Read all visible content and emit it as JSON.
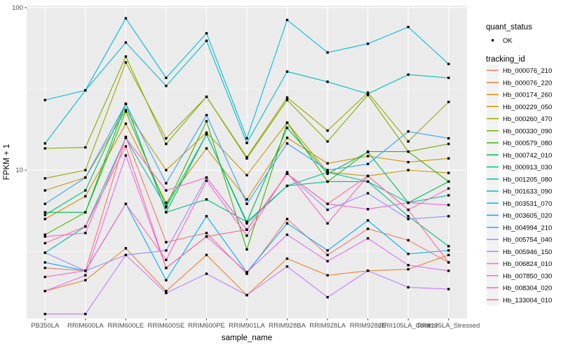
{
  "style": {
    "panel_bg": "#EBEBEB",
    "grid_color": "#FFFFFF",
    "tick_text_color": "#4D4D4D",
    "axis_title_color": "#000000",
    "point_color": "#000000",
    "legend_key_bg": "#F2F2F2",
    "quant_key_bg": "#FFFFFF"
  },
  "legend": {
    "quant_title": "quant_status",
    "quant_items": [
      {
        "label": "OK",
        "marker": "black-point"
      }
    ],
    "tracking_title": "tracking_id"
  },
  "chart_data": {
    "type": "line",
    "title": "",
    "xlabel": "sample_name",
    "ylabel": "FPKM + 1",
    "y_scale": "log10",
    "ylim": [
      1.22,
      103
    ],
    "y_major_ticks": [
      {
        "label": "100",
        "value": 100
      },
      {
        "label": "10",
        "value": 10
      }
    ],
    "y_minor_values": [
      31.623,
      3.1623
    ],
    "grid": true,
    "legend_position": "right",
    "point_marker": "small black square (quant_status = OK) on every observation",
    "categories": [
      "PB350LA",
      "RRIM600LA",
      "RRIM600LE",
      "RRIM600SE",
      "RRIM600PE",
      "RRIM901LA",
      "RRIM928BA",
      "RRIM928LA",
      "RRIM928LE",
      "RRII105LA_Control",
      "RRII105LA_Stressed"
    ],
    "series": [
      {
        "name": "Hb_000076_210",
        "color": "#F8766D",
        "values": [
          2.5,
          2.4,
          16.0,
          3.6,
          4.1,
          2.3,
          5.0,
          3.0,
          4.35,
          3.7,
          2.7
        ]
      },
      {
        "name": "Hb_000076_220",
        "color": "#EA8331",
        "values": [
          1.8,
          2.1,
          3.3,
          1.8,
          3.0,
          1.7,
          2.85,
          2.25,
          2.4,
          2.45,
          3.0
        ]
      },
      {
        "name": "Hb_000174_260",
        "color": "#D89000",
        "values": [
          5.0,
          6.9,
          19.3,
          6.3,
          13.6,
          6.6,
          15.8,
          11.0,
          12.2,
          11.2,
          11.8
        ]
      },
      {
        "name": "Hb_000229_050",
        "color": "#C09B00",
        "values": [
          7.5,
          9.0,
          23.4,
          10.0,
          17.0,
          9.3,
          19.6,
          9.7,
          9.2,
          10.0,
          9.6
        ]
      },
      {
        "name": "Hb_000260_470",
        "color": "#A3A500",
        "values": [
          8.9,
          10.0,
          46.0,
          15.7,
          28.3,
          12.0,
          28.0,
          17.5,
          30.0,
          15.0,
          26.3
        ]
      },
      {
        "name": "Hb_000330_090",
        "color": "#7CAE00",
        "values": [
          13.6,
          13.8,
          50.0,
          14.5,
          28.3,
          11.8,
          27.0,
          15.0,
          29.0,
          13.0,
          14.5
        ]
      },
      {
        "name": "Hb_000579_080",
        "color": "#39B600",
        "values": [
          4.0,
          5.5,
          23.0,
          6.0,
          20.0,
          3.25,
          19.6,
          8.5,
          13.0,
          13.0,
          8.5
        ]
      },
      {
        "name": "Hb_000742_010",
        "color": "#00BB4E",
        "values": [
          5.5,
          5.5,
          25.6,
          5.5,
          16.6,
          4.8,
          18.2,
          9.5,
          12.9,
          6.3,
          8.5
        ]
      },
      {
        "name": "Hb_000913_030",
        "color": "#00BF7D",
        "values": [
          5.3,
          7.5,
          25.6,
          5.5,
          6.6,
          4.8,
          8.0,
          8.5,
          8.5,
          5.2,
          3.4
        ]
      },
      {
        "name": "Hb_001205_080",
        "color": "#00C1A3",
        "values": [
          3.1,
          4.5,
          15.8,
          5.9,
          16.6,
          4.7,
          8.0,
          9.7,
          8.5,
          6.3,
          7.0
        ]
      },
      {
        "name": "Hb_001633_090",
        "color": "#00BFC4",
        "values": [
          14.6,
          31.0,
          61.0,
          33.0,
          62.5,
          14.7,
          40.4,
          35.0,
          29.5,
          38.7,
          37.0
        ]
      },
      {
        "name": "Hb_003531_070",
        "color": "#00BAE0",
        "values": [
          27.0,
          31.0,
          86.0,
          37.0,
          69.5,
          15.7,
          84.0,
          53.0,
          60.0,
          76.0,
          45.0
        ]
      },
      {
        "name": "Hb_003605_020",
        "color": "#00B0F6",
        "values": [
          2.7,
          2.4,
          6.2,
          2.1,
          5.2,
          2.35,
          4.7,
          3.2,
          4.9,
          3.05,
          3.2
        ]
      },
      {
        "name": "Hb_004994_210",
        "color": "#35A2FF",
        "values": [
          6.2,
          9.0,
          25.6,
          8.3,
          21.8,
          6.2,
          14.6,
          10.0,
          10.9,
          17.3,
          15.7
        ]
      },
      {
        "name": "Hb_005754_040",
        "color": "#9590FF",
        "values": [
          3.1,
          2.4,
          3.0,
          3.2,
          9.0,
          4.3,
          9.5,
          5.7,
          7.2,
          5.0,
          5.2
        ]
      },
      {
        "name": "Hb_005946_150",
        "color": "#C77CFF",
        "values": [
          1.3,
          1.3,
          3.0,
          1.75,
          2.3,
          1.7,
          2.55,
          1.65,
          2.4,
          1.9,
          1.85
        ]
      },
      {
        "name": "Hb_006824_010",
        "color": "#E76BF3",
        "values": [
          1.8,
          2.25,
          12.3,
          2.5,
          3.9,
          2.35,
          4.0,
          2.75,
          3.8,
          2.6,
          2.4
        ]
      },
      {
        "name": "Hb_007850_030",
        "color": "#FA62DB",
        "values": [
          3.9,
          4.1,
          15.8,
          7.5,
          9.0,
          4.3,
          9.5,
          6.2,
          5.75,
          6.3,
          6.1
        ]
      },
      {
        "name": "Hb_008304_020",
        "color": "#FF62BC",
        "values": [
          2.2,
          2.4,
          6.2,
          2.8,
          8.6,
          3.95,
          9.7,
          4.7,
          9.2,
          5.7,
          7.7
        ]
      },
      {
        "name": "Hb_133004_010",
        "color": "#FF6A98",
        "values": [
          3.55,
          4.5,
          14.0,
          2.5,
          3.9,
          4.3,
          9.5,
          6.2,
          9.2,
          5.7,
          2.7
        ]
      }
    ]
  }
}
